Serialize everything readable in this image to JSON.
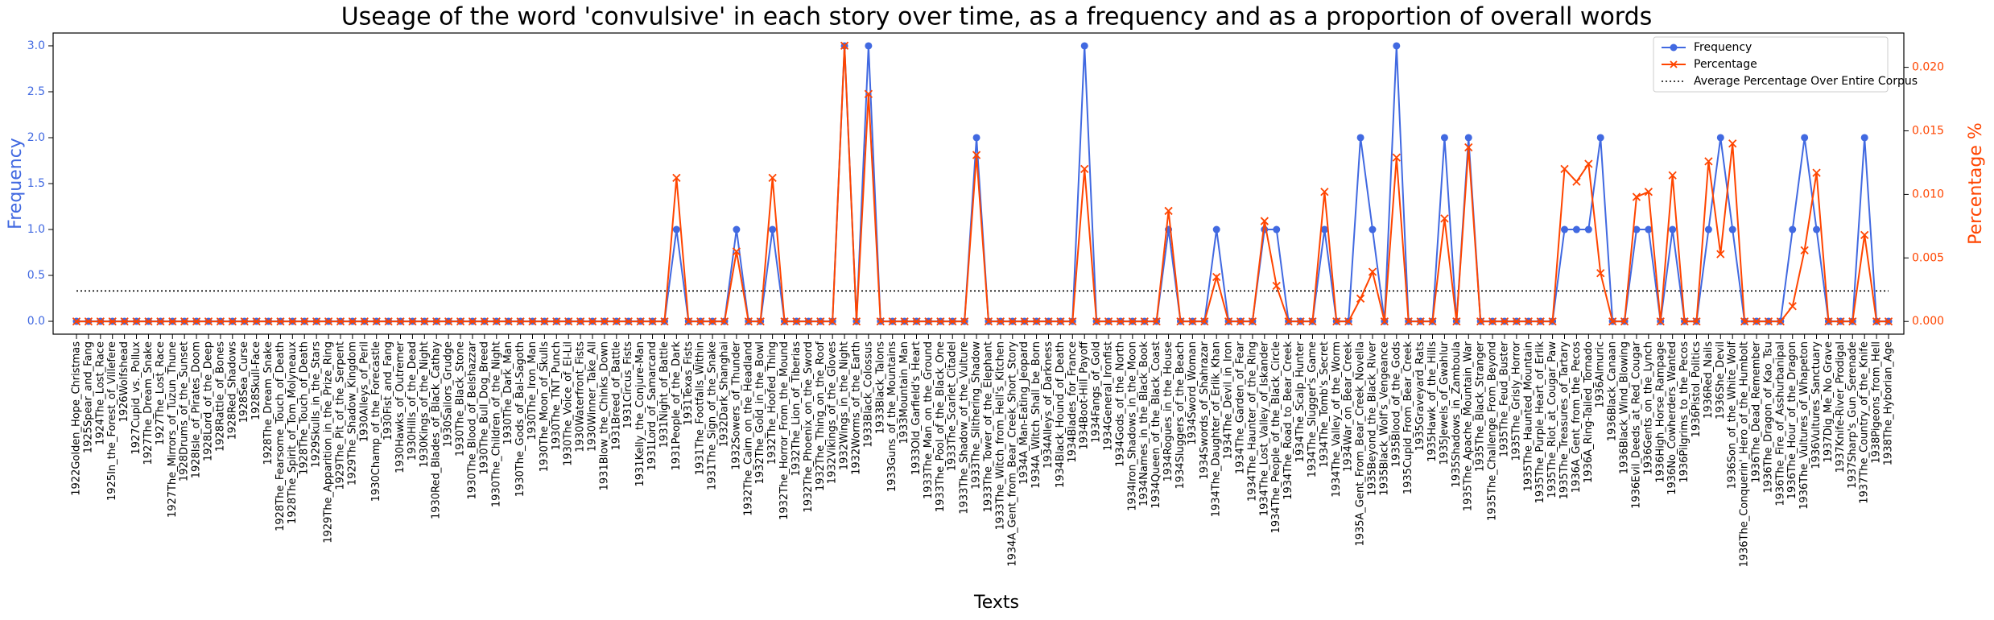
{
  "chart_data": {
    "type": "line",
    "title": "Useage of the word 'convulsive' in each story over time, as a frequency and as a proportion of overall words",
    "xlabel": "Texts",
    "ylabel": "Frequency",
    "y2label": "Percentage %",
    "categories": [
      "1922Golden_Hope_Christmas",
      "1925Spear_and_Fang",
      "1924The_Lost_Race",
      "1925In_the_Forest_of_Villefere",
      "1926Wolfshead",
      "1927Cupid_vs._Pollux",
      "1927The_Dream_Snake",
      "1927The_Lost_Race",
      "1927The_Mirrors_of_Tuzun_Thune",
      "1928Drums_of_the_Sunset",
      "1928Isle_of_Pirates_Doom",
      "1928Lord_of_the_Deep",
      "1928Rattle_of_Bones",
      "1928Red_Shadows",
      "1928Sea_Curse",
      "1928Skull-Face",
      "1928The_Dream_Snake",
      "1928The_Fearsome_Touch_of_Death",
      "1928The_Spirit_of_Tom_Molyneaux",
      "1928The_Touch_of_Death",
      "1929Skulls_in_the_Stars",
      "1929The_Apparition_in_the_Prize_Ring",
      "1929The_Pit_of_the_Serpent",
      "1929The_Shadow_Kingdom",
      "1930Alleys_of_Peril",
      "1930Champ_of_the_Forecastle",
      "1930Fist_and_Fang",
      "1930Hawks_of_Outremer",
      "1930Hills_of_the_Dead",
      "1930Kings_of_the_Night",
      "1930Red_Blades_of_Black_Cathay",
      "1930Sailors_Grudge",
      "1930The_Black_Stone",
      "1930The_Blood_of_Belshazzar",
      "1930The_Bull_Dog_Breed",
      "1930The_Children_of_the_Night",
      "1930The_Dark_Man",
      "1930The_Gods_of_Bal-Sagoth",
      "1930The_Iron_Man",
      "1930The_Moon_of_Skulls",
      "1930The_TNT_Punch",
      "1930The_Voice_of_El-Lil",
      "1930Waterfront_Fists",
      "1930Winner_Take_All",
      "1931Blow_the_Chinks_Down",
      "1931Breed_of_Battle",
      "1931Circus_Fists",
      "1931Kelly_the_Conjure-Man",
      "1931Lord_of_Samarcand",
      "1931Night_of_Battle",
      "1931People_of_the_Dark",
      "1931Texas_Fists",
      "1931The_Footfalls_Within",
      "1931The_Sign_of_the_Snake",
      "1932Dark_Shanghai",
      "1932Sowers_of_Thunder",
      "1932The_Cairn_on_the_Headland",
      "1932The_Gold_in_the_Bowl",
      "1932The_Hoofed_Thing",
      "1932The_Horror_From_the_Mound",
      "1932The_Lion_of_Tiberias",
      "1932The_Phoenix_on_the_Sword",
      "1932The_Thing_on_the_Roof",
      "1932Vikings_of_the_Gloves",
      "1932Wings_in_the_Night",
      "1932Worms_of_the_Earth",
      "1933Black_Colossus",
      "1933Black_Talons",
      "1933Guns_of_the_Mountains",
      "1933Mountain_Man",
      "1933Old_Garfield's_Heart",
      "1933The_Man_on_the_Ground",
      "1933The_Pool_of_the_Black_One",
      "1933The_Scarlet_Citadel",
      "1933The_Shadow_of_the_Vulture",
      "1933The_Slithering_Shadow",
      "1933The_Tower_of_the_Elephant",
      "1933The_Witch_from_Hell's_Kitchen",
      "1934A_Gent_from_Bear_Creek_Short_Story",
      "1934A_Man-Eating_Jeopard",
      "1934A_Witch_Shall_be_Born",
      "1934Alleys_of_Darkness",
      "1934Black_Hound_of_Death",
      "1934Blades_for_France",
      "1934Boot-Hill_Payoff",
      "1934Fangs_of_Gold",
      "1934General_Ironfist",
      "1934Gods_of_the_North",
      "1934Iron_Shadows_in_the_Moon",
      "1934Names_in_the_Black_Book",
      "1934Queen_of_the_Black_Coast",
      "1934Rogues_in_the_House",
      "1934Sluggers_of_the_Beach",
      "1934Sword_Woman",
      "1934Swords_of_Shahrazar",
      "1934The_Daughter_of_Erlik_Khan",
      "1934The_Devil_in_Iron",
      "1934The_Garden_of_Fear",
      "1934The_Haunter_of_the_Ring",
      "1934The_Lost_Valley_of_Iskander",
      "1934The_People_of_the_Black_Circle",
      "1934The_Road_to_Bear_Creek",
      "1934The_Scalp_Hunter",
      "1934The_Slugger's_Game",
      "1934The_Tomb's_Secret",
      "1934The_Valley_of_the_Worm",
      "1934War_on_Bear_Creek",
      "1935A_Gent_From_Bear_Creek_Novella",
      "1935Beyond_the_Black_River",
      "1935Black_Wolf's_Vengeance",
      "1935Blood_of_the_Gods",
      "1935Cupid_From_Bear_Creek",
      "1935Graveyard_Rats",
      "1935Hawk_of_the_Hills",
      "1935Jewels_of_Gwahlur",
      "1935Shadows_in_Zamboula",
      "1935The_Apache_Mountain_War",
      "1935The_Black_Stranger",
      "1935The_Challenge_From_Beyond",
      "1935The_Feud_Buster",
      "1935The_Grisly_Horror",
      "1935The_Haunted_Mountain",
      "1935The_Purple_Heart_of_Erlik",
      "1935The_Riot_at_Cougar_Paw",
      "1935The_Treasures_of_Tartary",
      "1936A_Gent_from_the_Pecos",
      "1936A_Ring-Tailed_Tornado",
      "1936Almuric",
      "1936Black_Canaan",
      "1936Black_Wind_Blowing",
      "1936Evil_Deeds_at_Red_Cougar",
      "1936Gents_on_the_Lynch",
      "1936High_Horse_Rampage",
      "1936No_Cowherders_Wanted",
      "1936Pilgrims_to_the_Pecos",
      "1936Pistol_Politics",
      "1936Red_Nails",
      "1936She_Devil",
      "1936Son_of_the_White_Wolf",
      "1936The_Conquerin'_Hero_of_the_Humbolt",
      "1936The_Dead_Remember",
      "1936The_Dragon_of_Kao_Tsu",
      "1936The_Fire_of_Asshurbanipal",
      "1936The_Hour_of_the_Dragon",
      "1936The_Vultures_of_Whapeton",
      "1936Vultures_Sanctuary",
      "1937Dig_Me_No_Grave",
      "1937Knife-River_Prodigal",
      "1937Sharp's_Gun_Serenade",
      "1937The_Country_of_the_Knife",
      "1938Pigeons_from_Hell",
      "1938The_Hyborian_Age"
    ],
    "series": [
      {
        "name": "Frequency",
        "color": "#4169e1",
        "marker": "o",
        "values": [
          0,
          0,
          0,
          0,
          0,
          0,
          0,
          0,
          0,
          0,
          0,
          0,
          0,
          0,
          0,
          0,
          0,
          0,
          0,
          0,
          0,
          0,
          0,
          0,
          0,
          0,
          0,
          0,
          0,
          0,
          0,
          0,
          0,
          0,
          0,
          0,
          0,
          0,
          0,
          0,
          0,
          0,
          0,
          0,
          0,
          0,
          0,
          0,
          0,
          0,
          1,
          0,
          0,
          0,
          0,
          1,
          0,
          0,
          1,
          0,
          0,
          0,
          0,
          0,
          3,
          0,
          3,
          0,
          0,
          0,
          0,
          0,
          0,
          0,
          0,
          2,
          0,
          0,
          0,
          0,
          0,
          0,
          0,
          0,
          3,
          0,
          0,
          0,
          0,
          0,
          0,
          1,
          0,
          0,
          0,
          1,
          0,
          0,
          0,
          1,
          1,
          0,
          0,
          0,
          1,
          0,
          0,
          2,
          1,
          0,
          3,
          0,
          0,
          0,
          2,
          0,
          2,
          0,
          0,
          0,
          0,
          0,
          0,
          0,
          1,
          1,
          1,
          2,
          0,
          0,
          1,
          1,
          0,
          1,
          0,
          0,
          1,
          2,
          1,
          0,
          0,
          0,
          0,
          1,
          2,
          1,
          0,
          0,
          0,
          2,
          0,
          0
        ]
      },
      {
        "name": "Percentage",
        "color": "#ff4500",
        "marker": "x",
        "axis": "y2",
        "values": [
          0,
          0,
          0,
          0,
          0,
          0,
          0,
          0,
          0,
          0,
          0,
          0,
          0,
          0,
          0,
          0,
          0,
          0,
          0,
          0,
          0,
          0,
          0,
          0,
          0,
          0,
          0,
          0,
          0,
          0,
          0,
          0,
          0,
          0,
          0,
          0,
          0,
          0,
          0,
          0,
          0,
          0,
          0,
          0,
          0,
          0,
          0,
          0,
          0,
          0,
          0.0113,
          0,
          0,
          0,
          0,
          0.0055,
          0,
          0,
          0.0113,
          0,
          0,
          0,
          0,
          0,
          0.0217,
          0,
          0.0179,
          0,
          0,
          0,
          0,
          0,
          0,
          0,
          0,
          0.0131,
          0,
          0,
          0,
          0,
          0,
          0,
          0,
          0,
          0.012,
          0,
          0,
          0,
          0,
          0,
          0,
          0.0087,
          0,
          0,
          0,
          0.0035,
          0,
          0,
          0,
          0.0079,
          0.0028,
          0,
          0,
          0,
          0.0102,
          0,
          0,
          0.0018,
          0.0039,
          0,
          0.0129,
          0,
          0,
          0,
          0.0081,
          0,
          0.0137,
          0,
          0,
          0,
          0,
          0,
          0,
          0,
          0.012,
          0.011,
          0.0124,
          0.0038,
          0,
          0,
          0.0098,
          0.0102,
          0,
          0.0115,
          0,
          0,
          0.0126,
          0.0053,
          0.014,
          0,
          0,
          0,
          0,
          0.0012,
          0.0056,
          0.0117,
          0,
          0,
          0,
          0.0068,
          0,
          0
        ]
      }
    ],
    "reference_lines": [
      {
        "name": "Average Percentage Over Entire Corpus",
        "value": 0.0024,
        "axis": "y2",
        "color": "#000000",
        "style": "dotted"
      }
    ],
    "ylim": [
      -0.14,
      3.14
    ],
    "yticks": [
      {
        "value": 0,
        "label": "0.0"
      },
      {
        "value": 0.5,
        "label": "0.5"
      },
      {
        "value": 1,
        "label": "1.0"
      },
      {
        "value": 1.5,
        "label": "1.5"
      },
      {
        "value": 2,
        "label": "2.0"
      },
      {
        "value": 2.5,
        "label": "2.5"
      },
      {
        "value": 3,
        "label": "3.0"
      }
    ],
    "y2lim": [
      -0.001,
      0.0227
    ],
    "y2ticks": [
      {
        "value": 0,
        "label": "0.000"
      },
      {
        "value": 0.005,
        "label": "0.005"
      },
      {
        "value": 0.01,
        "label": "0.010"
      },
      {
        "value": 0.015,
        "label": "0.015"
      },
      {
        "value": 0.02,
        "label": "0.020"
      }
    ],
    "legend": "upper right",
    "grid": false
  }
}
